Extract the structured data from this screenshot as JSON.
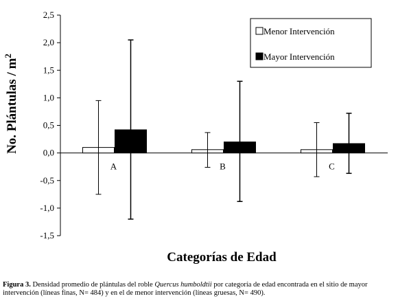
{
  "chart_data": {
    "type": "bar",
    "ylabel_main": "No. Plántulas / m",
    "ylabel_sup": "2",
    "xlabel": "Categorías de Edad",
    "ylim": [
      -1.5,
      2.5
    ],
    "yticks": [
      "2,5",
      "2,0",
      "1,5",
      "1,0",
      "0,5",
      "0,0",
      "-0,5",
      "-1,0",
      "-1,5"
    ],
    "categories": [
      "A",
      "B",
      "C"
    ],
    "series": [
      {
        "name": "Menor Intervención",
        "color": "#ffffff",
        "values": [
          0.1,
          0.06,
          0.06
        ],
        "err_low": [
          -0.75,
          -0.26,
          -0.43
        ],
        "err_high": [
          0.95,
          0.37,
          0.55
        ]
      },
      {
        "name": "Mayor Intervención",
        "color": "#000000",
        "values": [
          0.42,
          0.2,
          0.17
        ],
        "err_low": [
          -1.2,
          -0.88,
          -0.37
        ],
        "err_high": [
          2.05,
          1.3,
          0.72
        ]
      }
    ],
    "legend_position": "top-right"
  },
  "caption": {
    "label": "Figura 3.",
    "part1": " Densidad promedio de plántulas del roble ",
    "species": "Quercus humboldtii",
    "part2": " por categoría de edad encontrada en el sitio de mayor intervención (líneas finas, N= 484) y en el de menor intervención (líneas gruesas, N= 490)."
  }
}
